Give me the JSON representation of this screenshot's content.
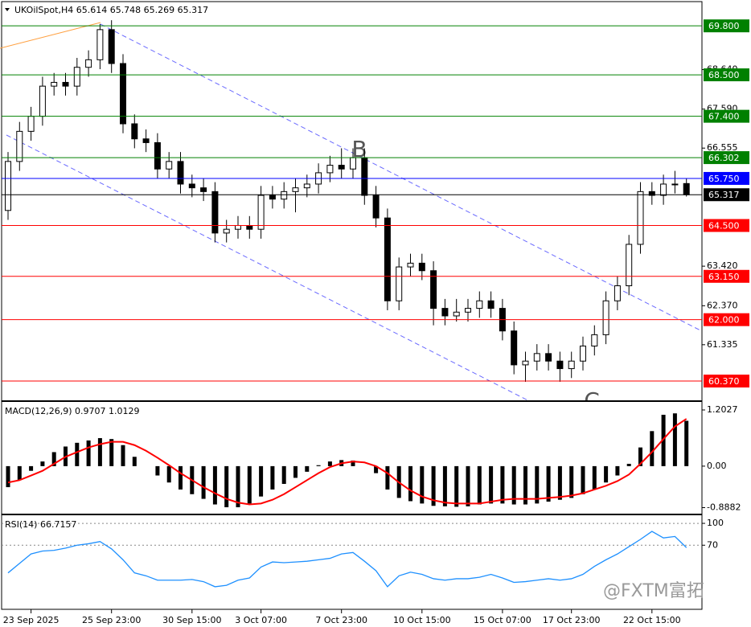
{
  "chart_data": [
    {
      "type": "candlestick",
      "title": "UKOilSpot,H4  65.614 65.748 65.269 65.317",
      "categories": [
        null,
        null,
        "23 Sep 2025",
        null,
        null,
        null,
        null,
        null,
        null,
        "25 Sep 23:00",
        null,
        null,
        null,
        null,
        null,
        null,
        "30 Sep 15:00",
        null,
        null,
        null,
        null,
        null,
        "3 Oct 07:00",
        null,
        null,
        null,
        null,
        null,
        null,
        "7 Oct 23:00",
        null,
        null,
        null,
        null,
        null,
        null,
        "10 Oct 15:00",
        null,
        null,
        null,
        null,
        null,
        null,
        "15 Oct 07:00",
        null,
        null,
        null,
        null,
        null,
        "17 Oct 23:00",
        null,
        null,
        null,
        null,
        null,
        null,
        "22 Oct 15:00",
        null,
        null,
        null
      ],
      "open": [
        64.9,
        66.2,
        67.0,
        67.4,
        68.2,
        68.3,
        68.2,
        68.7,
        68.9,
        69.7,
        68.8,
        67.2,
        66.8,
        66.7,
        66.0,
        66.2,
        65.6,
        65.5,
        65.4,
        64.3,
        64.4,
        64.5,
        64.4,
        65.3,
        65.2,
        65.4,
        65.5,
        65.6,
        65.9,
        66.1,
        66.0,
        66.3,
        65.3,
        64.7,
        62.5,
        63.4,
        63.5,
        63.3,
        62.3,
        62.1,
        62.2,
        62.3,
        62.5,
        62.3,
        61.7,
        60.8,
        60.9,
        61.1,
        60.9,
        60.7,
        60.9,
        61.3,
        61.6,
        62.5,
        62.9,
        64.0,
        65.4,
        65.3,
        65.6,
        65.614
      ],
      "high": [
        66.45,
        67.25,
        67.65,
        68.45,
        68.55,
        68.55,
        68.95,
        69.15,
        69.85,
        69.95,
        69.05,
        67.45,
        67.05,
        66.95,
        66.45,
        66.45,
        65.85,
        65.75,
        65.65,
        64.65,
        64.75,
        64.75,
        65.55,
        65.55,
        65.65,
        65.75,
        65.85,
        66.15,
        66.35,
        66.55,
        66.55,
        66.55,
        65.55,
        64.95,
        63.65,
        63.75,
        63.75,
        63.55,
        62.55,
        62.55,
        62.55,
        62.75,
        62.75,
        62.55,
        61.95,
        61.15,
        61.35,
        61.35,
        61.15,
        61.15,
        61.55,
        61.85,
        62.75,
        63.15,
        64.25,
        65.65,
        65.65,
        65.85,
        65.95,
        65.748
      ],
      "low": [
        64.65,
        65.95,
        66.75,
        67.15,
        67.95,
        67.95,
        67.95,
        68.45,
        68.65,
        68.55,
        66.95,
        66.55,
        66.45,
        65.75,
        65.75,
        65.35,
        65.25,
        65.15,
        64.05,
        64.05,
        64.15,
        64.15,
        64.15,
        64.95,
        64.95,
        64.85,
        65.25,
        65.35,
        65.65,
        65.75,
        65.75,
        65.05,
        64.45,
        62.25,
        62.25,
        63.15,
        63.05,
        61.85,
        61.85,
        61.95,
        61.95,
        62.05,
        62.05,
        61.45,
        60.55,
        60.35,
        60.65,
        60.65,
        60.35,
        60.45,
        60.65,
        61.05,
        61.35,
        62.25,
        62.65,
        63.75,
        65.05,
        65.05,
        65.35,
        65.269
      ],
      "close": [
        66.2,
        67.0,
        67.4,
        68.2,
        68.3,
        68.2,
        68.7,
        68.9,
        69.7,
        68.8,
        67.2,
        66.8,
        66.7,
        66.0,
        66.2,
        65.6,
        65.5,
        65.4,
        64.3,
        64.4,
        64.5,
        64.4,
        65.3,
        65.2,
        65.4,
        65.5,
        65.6,
        65.9,
        66.1,
        66.0,
        66.3,
        65.3,
        64.7,
        62.5,
        63.4,
        63.5,
        63.3,
        62.3,
        62.1,
        62.2,
        62.3,
        62.5,
        62.3,
        61.7,
        60.8,
        60.9,
        61.1,
        60.9,
        60.7,
        60.9,
        61.3,
        61.6,
        62.5,
        62.9,
        64.0,
        65.4,
        65.3,
        65.6,
        65.6,
        65.317
      ],
      "up_color": "#ffffff",
      "down_color": "#000000",
      "ylim": [
        59.88,
        70.38
      ],
      "yticks": [
        {
          "value": 68.64,
          "label": "68.640"
        },
        {
          "value": 67.59,
          "label": "67.590"
        },
        {
          "value": 66.555,
          "label": "66.555"
        },
        {
          "value": 63.42,
          "label": "63.420"
        },
        {
          "value": 62.37,
          "label": "62.370"
        },
        {
          "value": 61.335,
          "label": "61.335"
        }
      ],
      "levels": [
        {
          "value": 69.8,
          "label": "69.800",
          "color": "#008000"
        },
        {
          "value": 68.5,
          "label": "68.500",
          "color": "#008000"
        },
        {
          "value": 67.4,
          "label": "67.400",
          "color": "#008000"
        },
        {
          "value": 66.302,
          "label": "66.302",
          "color": "#008000"
        },
        {
          "value": 65.75,
          "label": "65.750",
          "color": "#0000ff"
        },
        {
          "value": 65.317,
          "label": "65.317",
          "color": "#000000"
        },
        {
          "value": 64.5,
          "label": "64.500",
          "color": "#ff0000"
        },
        {
          "value": 63.15,
          "label": "63.150",
          "color": "#ff0000"
        },
        {
          "value": 62.0,
          "label": "62.000",
          "color": "#ff0000"
        },
        {
          "value": 60.37,
          "label": "60.370",
          "color": "#ff0000"
        }
      ],
      "annotations": [
        "B",
        "C"
      ]
    },
    {
      "type": "macd",
      "title": "MACD(12,26,9) 0.9707 1.0129",
      "values": [
        -0.45,
        -0.3,
        -0.1,
        0.1,
        0.3,
        0.42,
        0.5,
        0.55,
        0.6,
        0.58,
        0.45,
        0.2,
        0.0,
        -0.2,
        -0.35,
        -0.5,
        -0.6,
        -0.7,
        -0.82,
        -0.88,
        -0.88,
        -0.8,
        -0.65,
        -0.5,
        -0.38,
        -0.25,
        -0.12,
        0.02,
        0.1,
        0.13,
        0.12,
        0.0,
        -0.15,
        -0.5,
        -0.68,
        -0.75,
        -0.8,
        -0.85,
        -0.86,
        -0.87,
        -0.86,
        -0.82,
        -0.8,
        -0.8,
        -0.82,
        -0.82,
        -0.8,
        -0.76,
        -0.72,
        -0.68,
        -0.6,
        -0.5,
        -0.35,
        -0.2,
        0.05,
        0.4,
        0.75,
        1.1,
        1.13,
        0.9707
      ],
      "color": "#000000",
      "signal": {
        "color": "#ff0000",
        "values": [
          -0.35,
          -0.3,
          -0.2,
          -0.1,
          0.05,
          0.2,
          0.3,
          0.4,
          0.47,
          0.52,
          0.52,
          0.45,
          0.33,
          0.18,
          0.02,
          -0.15,
          -0.3,
          -0.45,
          -0.58,
          -0.7,
          -0.78,
          -0.82,
          -0.8,
          -0.72,
          -0.6,
          -0.45,
          -0.3,
          -0.15,
          -0.02,
          0.06,
          0.1,
          0.08,
          0.0,
          -0.15,
          -0.35,
          -0.52,
          -0.65,
          -0.73,
          -0.78,
          -0.8,
          -0.8,
          -0.8,
          -0.76,
          -0.72,
          -0.7,
          -0.7,
          -0.7,
          -0.68,
          -0.66,
          -0.63,
          -0.58,
          -0.5,
          -0.42,
          -0.32,
          -0.18,
          0.05,
          0.3,
          0.58,
          0.85,
          1.0129
        ]
      },
      "ylim": [
        -1.0,
        1.375
      ],
      "yticks": [
        1.2027,
        {
          "value": 0,
          "label": "0.00"
        },
        -0.8882
      ]
    },
    {
      "type": "line",
      "title": "RSI(14) 66.7157",
      "values": [
        32,
        45,
        58,
        62,
        63,
        66,
        70,
        72,
        75,
        65,
        50,
        32,
        28,
        22,
        22,
        22,
        23,
        20,
        13,
        15,
        22,
        25,
        40,
        47,
        46,
        47,
        48,
        50,
        52,
        58,
        60,
        48,
        35,
        13,
        28,
        33,
        30,
        24,
        22,
        24,
        24,
        26,
        30,
        25,
        19,
        20,
        22,
        24,
        22,
        24,
        30,
        41,
        50,
        58,
        68,
        78,
        89,
        80,
        82,
        66.7157
      ],
      "color": "#1e90ff",
      "ylim": [
        -18,
        110
      ],
      "yticks": [
        100,
        70
      ]
    }
  ],
  "watermark": "@FXTM富拓"
}
